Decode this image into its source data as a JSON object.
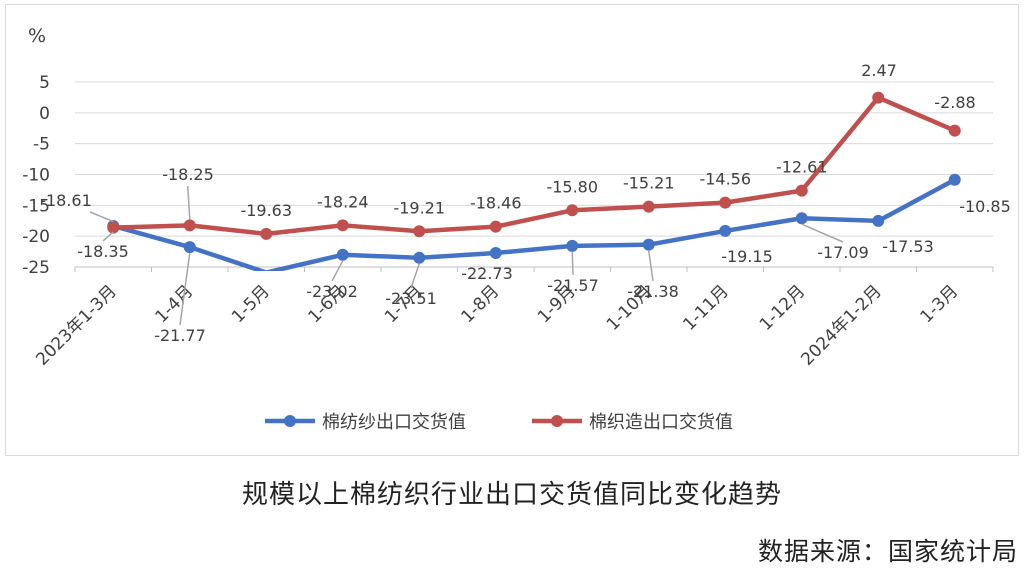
{
  "chart_data": {
    "type": "line",
    "unit_label": "%",
    "categories": [
      "2023年1-3月",
      "1-4月",
      "1-5月",
      "1-6月",
      "1-7月",
      "1-8月",
      "1-9月",
      "1-10月",
      "1-11月",
      "1-12月",
      "2024年1-2月",
      "1-3月"
    ],
    "ylim": [
      -25,
      5
    ],
    "yticks": [
      5,
      0,
      -5,
      -10,
      -15,
      -20,
      -25
    ],
    "grid": true,
    "legend_position": "bottom",
    "series": [
      {
        "name": "棉纺纱出口交货值",
        "color": "#4472C4",
        "values": [
          -18.35,
          -21.77,
          -25.9,
          -23.02,
          -23.51,
          -22.73,
          -21.57,
          -21.38,
          -19.15,
          -17.09,
          -17.53,
          -10.85
        ],
        "labels": [
          "-18.35",
          "-21.77",
          "",
          "-23.02",
          "-23.51",
          "-22.73",
          "-21.57",
          "-21.38",
          "-19.15",
          "-17.09",
          "-17.53",
          "-10.85"
        ]
      },
      {
        "name": "棉织造出口交货值",
        "color": "#C0504D",
        "values": [
          -18.61,
          -18.25,
          -19.63,
          -18.24,
          -19.21,
          -18.46,
          -15.8,
          -15.21,
          -14.56,
          -12.61,
          2.47,
          -2.88
        ],
        "labels": [
          "-18.61",
          "-18.25",
          "-19.63",
          "-18.24",
          "-19.21",
          "-18.46",
          "-15.80",
          "-15.21",
          "-14.56",
          "-12.61",
          "2.47",
          "-2.88"
        ]
      }
    ]
  },
  "caption": "规模以上棉纺织行业出口交货值同比变化趋势",
  "source": "数据来源：国家统计局"
}
